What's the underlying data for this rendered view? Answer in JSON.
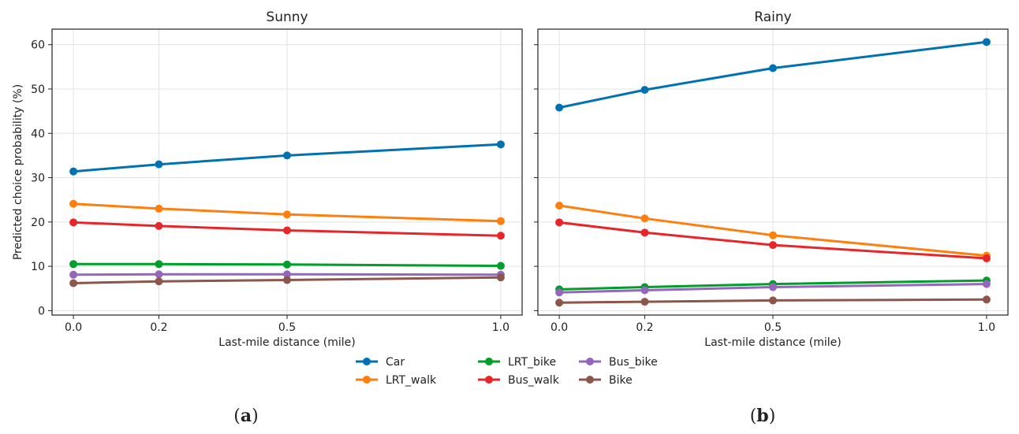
{
  "chart_data": [
    {
      "type": "line",
      "title": "Sunny",
      "caption": "a",
      "xlabel": "Last-mile distance (mile)",
      "ylabel": "Predicted choice probability (%)",
      "x": [
        0.0,
        0.2,
        0.5,
        1.0
      ],
      "x_tick_labels": [
        "0.0",
        "0.2",
        "0.5",
        "1.0"
      ],
      "xlim": [
        -0.05,
        1.05
      ],
      "ylim": [
        -1,
        63.5
      ],
      "y_ticks": [
        0,
        10,
        20,
        30,
        40,
        50,
        60
      ],
      "y_tick_labels": [
        "0",
        "10",
        "20",
        "30",
        "40",
        "50",
        "60"
      ],
      "grid": true,
      "series": [
        {
          "name": "Car",
          "color": "#0072b2",
          "values": [
            31.4,
            33.0,
            35.0,
            37.5
          ]
        },
        {
          "name": "LRT_walk",
          "color": "#ff7f0e",
          "values": [
            24.1,
            23.0,
            21.7,
            20.2
          ]
        },
        {
          "name": "LRT_bike",
          "color": "#009e2a",
          "values": [
            10.5,
            10.5,
            10.4,
            10.1
          ]
        },
        {
          "name": "Bus_walk",
          "color": "#e8262a",
          "values": [
            19.9,
            19.1,
            18.1,
            16.9
          ]
        },
        {
          "name": "Bus_bike",
          "color": "#9467bd",
          "values": [
            8.1,
            8.2,
            8.2,
            8.1
          ]
        },
        {
          "name": "Bike",
          "color": "#8c564b",
          "values": [
            6.2,
            6.6,
            6.9,
            7.5
          ]
        }
      ]
    },
    {
      "type": "line",
      "title": "Rainy",
      "caption": "b",
      "xlabel": "Last-mile distance (mile)",
      "ylabel": "",
      "x": [
        0.0,
        0.2,
        0.5,
        1.0
      ],
      "x_tick_labels": [
        "0.0",
        "0.2",
        "0.5",
        "1.0"
      ],
      "xlim": [
        -0.05,
        1.05
      ],
      "ylim": [
        -1,
        63.5
      ],
      "y_ticks": [
        0,
        10,
        20,
        30,
        40,
        50,
        60
      ],
      "y_tick_labels": [],
      "grid": true,
      "series": [
        {
          "name": "Car",
          "color": "#0072b2",
          "values": [
            45.8,
            49.8,
            54.7,
            60.6
          ]
        },
        {
          "name": "LRT_walk",
          "color": "#ff7f0e",
          "values": [
            23.7,
            20.8,
            17.0,
            12.4
          ]
        },
        {
          "name": "LRT_bike",
          "color": "#009e2a",
          "values": [
            4.8,
            5.3,
            6.0,
            6.8
          ]
        },
        {
          "name": "Bus_walk",
          "color": "#e8262a",
          "values": [
            19.9,
            17.6,
            14.8,
            11.8
          ]
        },
        {
          "name": "Bus_bike",
          "color": "#9467bd",
          "values": [
            4.1,
            4.6,
            5.3,
            6.0
          ]
        },
        {
          "name": "Bike",
          "color": "#8c564b",
          "values": [
            1.8,
            2.0,
            2.3,
            2.5
          ]
        }
      ]
    }
  ],
  "legend": {
    "placement": "bottom-center",
    "entries": [
      {
        "name": "Car",
        "color": "#0072b2"
      },
      {
        "name": "LRT_walk",
        "color": "#ff7f0e"
      },
      {
        "name": "LRT_bike",
        "color": "#009e2a"
      },
      {
        "name": "Bus_walk",
        "color": "#e8262a"
      },
      {
        "name": "Bus_bike",
        "color": "#9467bd"
      },
      {
        "name": "Bike",
        "color": "#8c564b"
      }
    ]
  },
  "captions": [
    "(a)",
    "(b)"
  ]
}
